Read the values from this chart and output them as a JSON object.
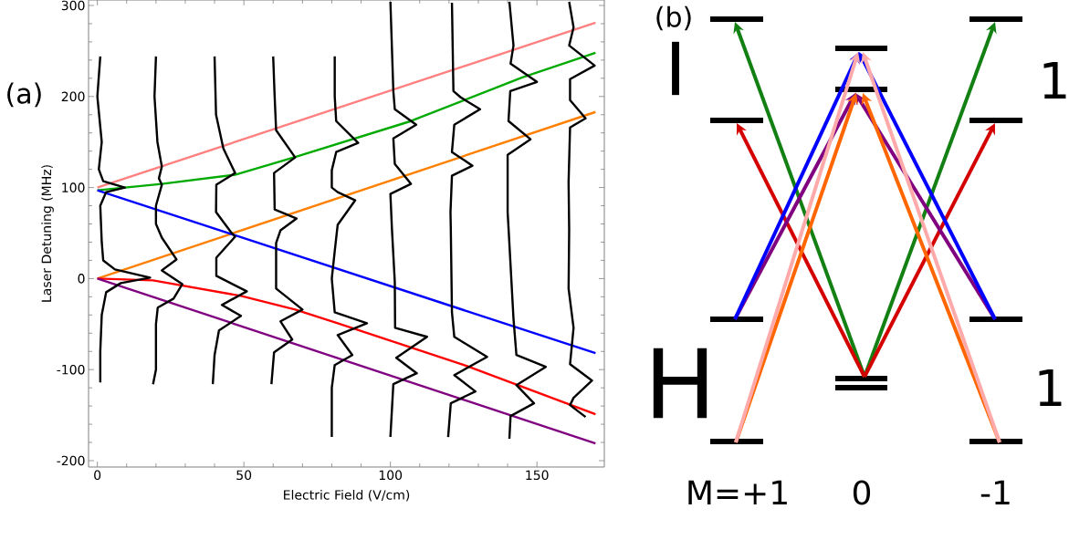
{
  "chart_data": [
    {
      "type": "line",
      "title": "(a)",
      "xlabel": "Electric Field (V/cm)",
      "ylabel": "Laser Detuning (MHz)",
      "xlim": [
        -3,
        173
      ],
      "ylim": [
        -207,
        306
      ],
      "xticks": [
        0,
        50,
        100,
        150
      ],
      "yticks": [
        -200,
        -100,
        0,
        100,
        200,
        300
      ],
      "marker": "none",
      "line_style": "solid",
      "series": [
        {
          "color": "#ff8080",
          "x": [
            0,
            170
          ],
          "values": [
            100,
            281
          ]
        },
        {
          "color": "#00aa00",
          "x": [
            0,
            22,
            47,
            67,
            107,
            145,
            170
          ],
          "values": [
            97,
            104,
            114,
            133,
            173,
            221,
            248
          ]
        },
        {
          "color": "#ff8000",
          "x": [
            0,
            170
          ],
          "values": [
            0,
            183
          ]
        },
        {
          "color": "#0000ff",
          "x": [
            0,
            170
          ],
          "values": [
            97,
            -82
          ]
        },
        {
          "color": "#ff0000",
          "x": [
            0,
            19,
            49,
            67.5,
            82,
            126,
            170
          ],
          "values": [
            0,
            -2,
            -19,
            -34,
            -49,
            -96,
            -149
          ]
        },
        {
          "color": "#800080",
          "x": [
            0,
            170
          ],
          "values": [
            0,
            -181
          ]
        },
        {
          "color": "#000000",
          "x": [
            1,
            0,
            1.5,
            0.5,
            2,
            9.4,
            3,
            1,
            1.5,
            2,
            6,
            18,
            8,
            3,
            1.5,
            1,
            1
          ],
          "values": [
            244,
            200,
            150,
            120,
            107,
            100,
            95,
            80,
            40,
            20,
            10,
            1,
            -5,
            -15,
            -40,
            -80,
            -114
          ]
        },
        {
          "color": "#000000",
          "x": [
            20,
            19.5,
            20.5,
            22,
            21,
            22,
            20,
            20,
            22,
            27,
            22,
            29,
            26,
            20.6,
            20,
            20,
            19
          ],
          "values": [
            244,
            200,
            150,
            123,
            110,
            103,
            80,
            60,
            45,
            21,
            9,
            -6,
            -22,
            -32,
            -50,
            -100,
            -116
          ]
        },
        {
          "color": "#000000",
          "x": [
            40,
            40.5,
            43,
            47,
            40.6,
            40.5,
            45.6,
            47,
            40.6,
            40.6,
            51,
            42.5,
            49,
            41.5,
            40,
            39.4
          ],
          "values": [
            244,
            180,
            143,
            116,
            103,
            73,
            51,
            46,
            23,
            3,
            -14,
            -29,
            -41,
            -57,
            -84,
            -116
          ]
        },
        {
          "color": "#000000",
          "x": [
            60,
            60.5,
            61,
            67.5,
            60.3,
            60.5,
            68,
            62.5,
            61,
            61,
            70,
            62.5,
            66.5,
            60.3,
            59.4
          ],
          "values": [
            244,
            200,
            163,
            133,
            116,
            76,
            66,
            53,
            39,
            -11,
            -34,
            -47,
            -67,
            -81,
            -116
          ]
        },
        {
          "color": "#000000",
          "x": [
            81,
            81,
            81.5,
            89,
            81.5,
            80,
            80,
            82,
            88,
            82,
            81,
            80,
            81,
            92,
            82,
            87,
            81,
            80,
            80
          ],
          "values": [
            244,
            200,
            173,
            149,
            139,
            119,
            100,
            95,
            86,
            59,
            30,
            0,
            -37,
            -49,
            -62,
            -84,
            -95,
            -120,
            -174
          ]
        },
        {
          "color": "#000000",
          "x": [
            100,
            101,
            101.5,
            108.8,
            101,
            101.5,
            107,
            100,
            100.5,
            101.5,
            101.6,
            112.5,
            102,
            109,
            101,
            100
          ],
          "values": [
            304,
            206,
            186,
            169,
            154,
            126,
            104,
            93,
            56,
            -4,
            -54,
            -64,
            -87,
            -104,
            -116,
            -174
          ]
        },
        {
          "color": "#000000",
          "x": [
            121,
            121.5,
            124,
            130.6,
            121.8,
            121,
            128,
            121,
            120.5,
            120.6,
            121,
            121.8,
            133,
            121.8,
            129,
            120.6,
            119.7
          ],
          "values": [
            303,
            206,
            199,
            186,
            169,
            139,
            124,
            113,
            73,
            56,
            -37,
            -64,
            -86,
            -106,
            -124,
            -137,
            -174
          ]
        },
        {
          "color": "#000000",
          "x": [
            140.6,
            142,
            141,
            150,
            140.9,
            140.3,
            147.8,
            140,
            140,
            140.3,
            142,
            143,
            153,
            143,
            149,
            141,
            140.6
          ],
          "values": [
            304,
            256,
            236,
            216,
            206,
            173,
            153,
            136,
            73,
            56,
            -44,
            -84,
            -97,
            -117,
            -137,
            -151,
            -176
          ]
        },
        {
          "color": "#000000",
          "x": [
            161,
            162.5,
            161,
            169.7,
            161.3,
            161.3,
            166.6,
            161.3,
            160.8,
            161,
            160.8,
            162.5,
            161.3,
            168.8,
            162.5,
            161.3,
            166.6
          ],
          "values": [
            304,
            276,
            256,
            234,
            219,
            196,
            176,
            166,
            106,
            53,
            -11,
            -54,
            -94,
            -112,
            -131,
            -139,
            -152
          ]
        }
      ]
    },
    {
      "type": "other",
      "title": "(b)",
      "annotations": [
        "I",
        "1",
        "H",
        "1",
        "M=+1",
        "0",
        "-1"
      ]
    }
  ]
}
